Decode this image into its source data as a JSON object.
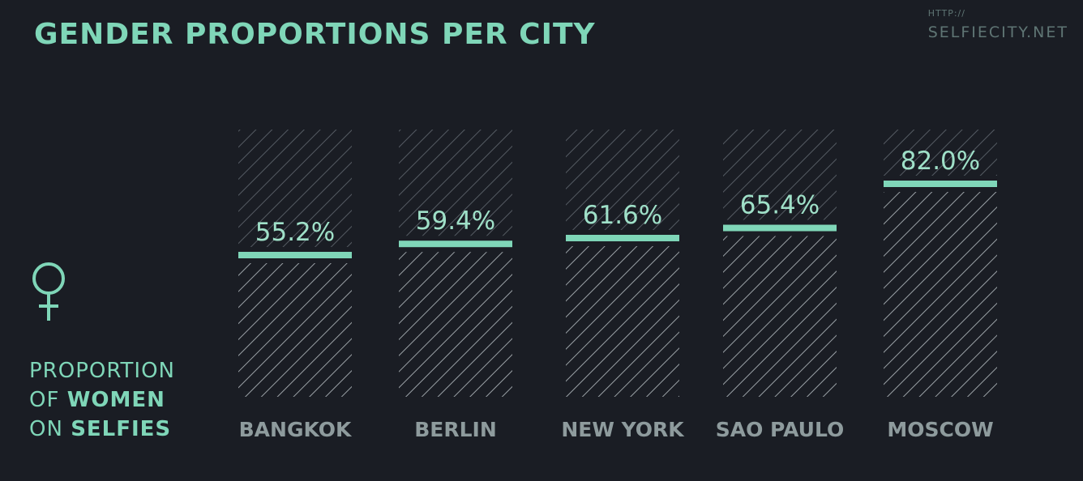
{
  "header": {
    "title": "GENDER PROPORTIONS PER CITY",
    "source_protocol": "HTTP://",
    "source_site": "SELFIECITY.NET"
  },
  "legend": {
    "icon": "female-symbol-icon",
    "line1": "PROPORTION",
    "line2_prefix": "OF ",
    "line2_bold": "WOMEN",
    "line3_prefix": "ON ",
    "line3_bold": "SELFIES"
  },
  "colors": {
    "background": "#1a1d24",
    "accent": "#7fd6b8",
    "hatch_upper": "#555b63",
    "hatch_lower": "#9aa1a6",
    "city_label": "#8e9b9d"
  },
  "chart_data": {
    "type": "bar",
    "title": "GENDER PROPORTIONS PER CITY",
    "categories": [
      "BANGKOK",
      "BERLIN",
      "NEW YORK",
      "SAO PAULO",
      "MOSCOW"
    ],
    "values": [
      55.2,
      59.4,
      61.6,
      65.4,
      82.0
    ],
    "value_labels": [
      "55.2%",
      "59.4%",
      "61.6%",
      "65.4%",
      "82.0%"
    ],
    "ylim": [
      0,
      100
    ],
    "unit": "%",
    "grid": false
  }
}
